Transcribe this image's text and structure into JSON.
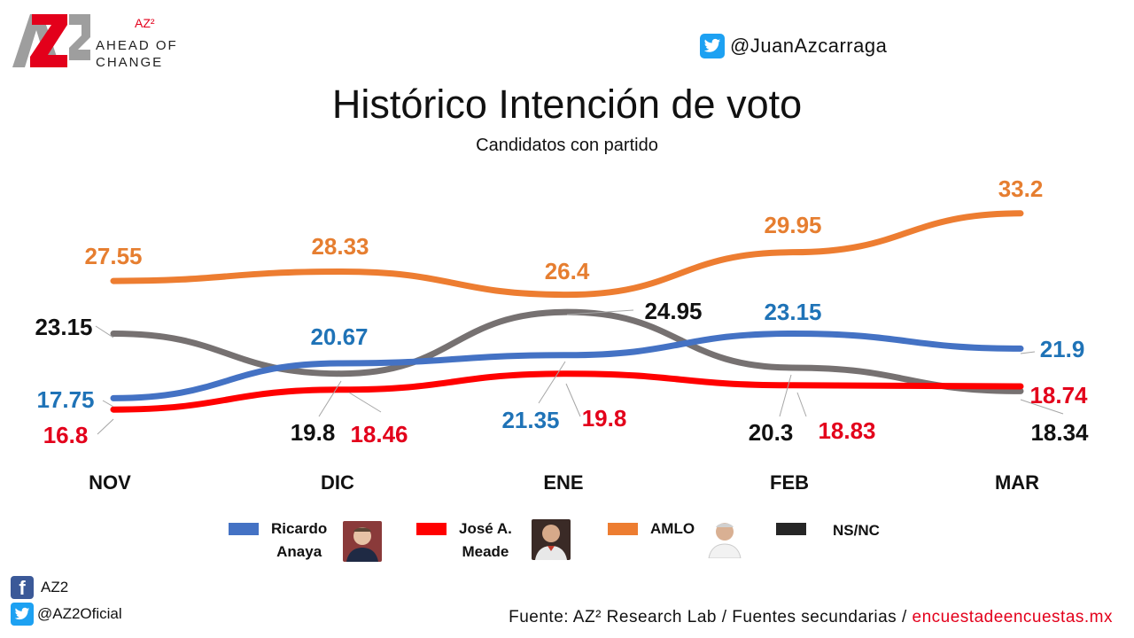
{
  "logo": {
    "mark": "AZ2",
    "brand": "AZ²",
    "tagline_1": "AHEAD OF",
    "tagline_2": "CHANGE"
  },
  "social_top": {
    "handle": "@JuanAzcarraga",
    "icon": "twitter-icon"
  },
  "chart_data": {
    "type": "line",
    "title": "Histórico Intención de voto",
    "subtitle": "Candidatos con partido",
    "categories": [
      "NOV",
      "DIC",
      "ENE",
      "FEB",
      "MAR"
    ],
    "series": [
      {
        "name": "AMLO",
        "color": "#ed7d31",
        "values": [
          27.55,
          28.33,
          26.4,
          29.95,
          33.2
        ]
      },
      {
        "name": "NS/NC",
        "color": "#767171",
        "values": [
          23.15,
          19.8,
          24.95,
          20.3,
          18.34
        ]
      },
      {
        "name": "Ricardo Anaya",
        "color": "#4472c4",
        "values": [
          17.75,
          20.67,
          21.35,
          23.15,
          21.9
        ]
      },
      {
        "name": "José A. Meade",
        "color": "#ff0000",
        "values": [
          16.8,
          18.46,
          19.8,
          18.83,
          18.74
        ]
      }
    ],
    "label_colors": {
      "AMLO": "#e67e30",
      "NS/NC": "#111111",
      "Ricardo Anaya": "#1f73b7",
      "José A. Meade": "#e3001b"
    },
    "grid": false,
    "legend": "bottom"
  },
  "legend": [
    {
      "key": "anaya",
      "line1": "Ricardo",
      "line2": "Anaya",
      "color": "#4472c4"
    },
    {
      "key": "meade",
      "line1": "José A.",
      "line2": "Meade",
      "color": "#ff0000"
    },
    {
      "key": "amlo",
      "line1": "AMLO",
      "line2": "",
      "color": "#ed7d31"
    },
    {
      "key": "nsnc",
      "line1": "NS/NC",
      "line2": "",
      "color": "#262626"
    }
  ],
  "footer": {
    "facebook": "AZ2",
    "twitter": "@AZ2Oficial",
    "source_prefix": "Fuente: AZ² Research Lab / Fuentes secundarias / ",
    "source_link": "encuestadeencuestas.mx"
  }
}
